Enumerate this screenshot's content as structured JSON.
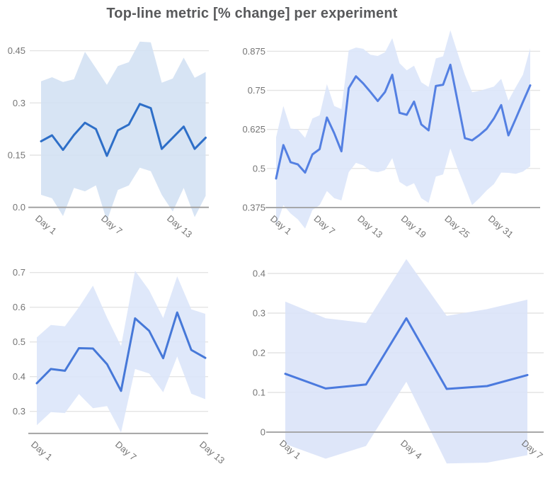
{
  "title": "Top-line metric [% change] per experiment",
  "styles": {
    "title_color": "#58595b",
    "tick_label_color": "#757575",
    "grid_color": "#e4e4e4",
    "axis_color": "#9e9e9e"
  },
  "chart_data": [
    {
      "type": "line",
      "position": "top-left",
      "x_tick_labels": [
        "Day 1",
        "Day 7",
        "Day 13"
      ],
      "x_tick_indices": [
        0,
        6,
        12
      ],
      "y_tick_labels": [
        "0.0",
        "0.15",
        "0.3",
        "0.45"
      ],
      "y_ticks": [
        0,
        0.15,
        0.3,
        0.45
      ],
      "axis_value": 0,
      "line_color": "#2e6fc8",
      "band_color": "#d2e0f3",
      "series": [
        {
          "name": "metric",
          "values": [
            0.19,
            0.207,
            0.165,
            0.208,
            0.243,
            0.225,
            0.148,
            0.221,
            0.238,
            0.297,
            0.285,
            0.168,
            0.2,
            0.232,
            0.168,
            0.2
          ]
        },
        {
          "name": "upper",
          "values": [
            0.362,
            0.374,
            0.36,
            0.368,
            0.447,
            0.4,
            0.352,
            0.406,
            0.417,
            0.476,
            0.474,
            0.358,
            0.37,
            0.43,
            0.372,
            0.389
          ]
        },
        {
          "name": "lower",
          "values": [
            0.036,
            0.026,
            -0.025,
            0.056,
            0.046,
            0.063,
            -0.039,
            0.05,
            0.063,
            0.114,
            0.104,
            0.036,
            -0.012,
            0.056,
            -0.028,
            0.033
          ]
        }
      ]
    },
    {
      "type": "line",
      "position": "top-right",
      "x_tick_labels": [
        "Day 1",
        "Day 7",
        "Day 13",
        "Day 19",
        "Day 25",
        "Day 31"
      ],
      "x_tick_indices": [
        0,
        6,
        12,
        18,
        24,
        30
      ],
      "y_tick_labels": [
        "0.375",
        "0.5",
        "0.625",
        "0.75",
        "0.875"
      ],
      "y_ticks": [
        0.375,
        0.5,
        0.625,
        0.75,
        0.875
      ],
      "axis_value": 0.375,
      "line_color": "#5480e2",
      "band_color": "#dbe5f9",
      "series": [
        {
          "name": "metric",
          "values": [
            0.468,
            0.575,
            0.52,
            0.513,
            0.487,
            0.545,
            0.562,
            0.663,
            0.613,
            0.555,
            0.757,
            0.795,
            0.772,
            0.745,
            0.716,
            0.745,
            0.8,
            0.678,
            0.672,
            0.714,
            0.641,
            0.622,
            0.764,
            0.768,
            0.832,
            0.715,
            0.597,
            0.59,
            0.607,
            0.627,
            0.66,
            0.703,
            0.606,
            0.659,
            0.713,
            0.766
          ]
        },
        {
          "name": "upper",
          "values": [
            0.6,
            0.7,
            0.628,
            0.625,
            0.598,
            0.66,
            0.67,
            0.77,
            0.7,
            0.69,
            0.878,
            0.887,
            0.883,
            0.864,
            0.86,
            0.872,
            0.917,
            0.837,
            0.814,
            0.829,
            0.776,
            0.761,
            0.852,
            0.859,
            0.942,
            0.87,
            0.8,
            0.744,
            0.748,
            0.755,
            0.762,
            0.787,
            0.717,
            0.76,
            0.8,
            0.885
          ]
        },
        {
          "name": "lower",
          "values": [
            0.315,
            0.383,
            0.356,
            0.337,
            0.308,
            0.367,
            0.383,
            0.428,
            0.405,
            0.398,
            0.488,
            0.518,
            0.51,
            0.492,
            0.488,
            0.495,
            0.533,
            0.457,
            0.442,
            0.453,
            0.405,
            0.39,
            0.474,
            0.481,
            0.564,
            0.5,
            0.442,
            0.383,
            0.405,
            0.43,
            0.45,
            0.487,
            0.486,
            0.483,
            0.49,
            0.507
          ]
        }
      ]
    },
    {
      "type": "line",
      "position": "bottom-left",
      "x_tick_labels": [
        "Day 1",
        "Day 7",
        "Day 13"
      ],
      "x_tick_indices": [
        0,
        6,
        12
      ],
      "y_tick_labels": [
        "0.3",
        "0.4",
        "0.5",
        "0.6",
        "0.7"
      ],
      "y_ticks": [
        0.3,
        0.4,
        0.5,
        0.6,
        0.7
      ],
      "axis_value": 0.2365,
      "line_color": "#4678d8",
      "band_color": "#dbe5f9",
      "series": [
        {
          "name": "metric",
          "values": [
            0.381,
            0.422,
            0.417,
            0.482,
            0.481,
            0.436,
            0.359,
            0.568,
            0.532,
            0.453,
            0.585,
            0.477,
            0.454
          ]
        },
        {
          "name": "upper",
          "values": [
            0.513,
            0.549,
            0.545,
            0.6,
            0.662,
            0.57,
            0.488,
            0.705,
            0.649,
            0.569,
            0.689,
            0.594,
            0.581
          ]
        },
        {
          "name": "lower",
          "values": [
            0.26,
            0.298,
            0.295,
            0.35,
            0.309,
            0.315,
            0.239,
            0.422,
            0.409,
            0.355,
            0.458,
            0.351,
            0.335
          ]
        }
      ]
    },
    {
      "type": "line",
      "position": "bottom-right",
      "x_tick_labels": [
        "Day 1",
        "Day 4",
        "Day 7"
      ],
      "x_tick_indices": [
        0,
        3,
        6
      ],
      "y_tick_labels": [
        "0",
        "0.1",
        "0.2",
        "0.3",
        "0.4"
      ],
      "y_ticks": [
        0,
        0.1,
        0.2,
        0.3,
        0.4
      ],
      "axis_value": 0,
      "line_color": "#4b7ade",
      "band_color": "#d9e3f8",
      "series": [
        {
          "name": "metric",
          "values": [
            0.147,
            0.11,
            0.12,
            0.287,
            0.109,
            0.116,
            0.144
          ]
        },
        {
          "name": "upper",
          "values": [
            0.329,
            0.287,
            0.275,
            0.436,
            0.293,
            0.31,
            0.334
          ]
        },
        {
          "name": "lower",
          "values": [
            -0.03,
            -0.067,
            -0.035,
            0.127,
            -0.079,
            -0.077,
            -0.058
          ]
        }
      ]
    }
  ]
}
